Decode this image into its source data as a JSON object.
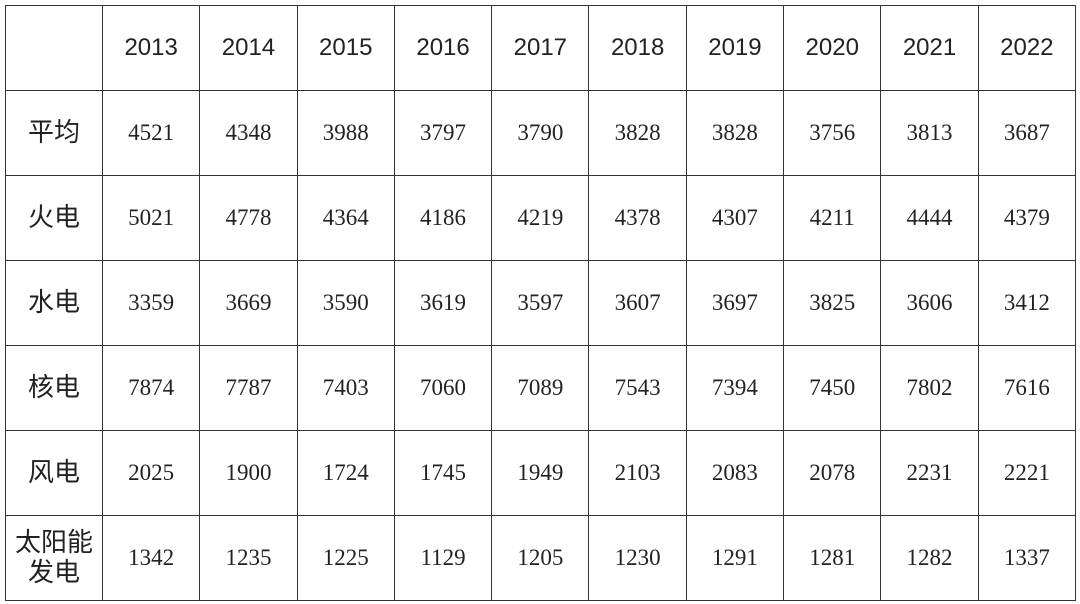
{
  "table": {
    "columns": [
      "2013",
      "2014",
      "2015",
      "2016",
      "2017",
      "2018",
      "2019",
      "2020",
      "2021",
      "2022"
    ],
    "rows": [
      {
        "label": "平均",
        "values": [
          4521,
          4348,
          3988,
          3797,
          3790,
          3828,
          3828,
          3756,
          3813,
          3687
        ]
      },
      {
        "label": "火电",
        "values": [
          5021,
          4778,
          4364,
          4186,
          4219,
          4378,
          4307,
          4211,
          4444,
          4379
        ]
      },
      {
        "label": "水电",
        "values": [
          3359,
          3669,
          3590,
          3619,
          3597,
          3607,
          3697,
          3825,
          3606,
          3412
        ]
      },
      {
        "label": "核电",
        "values": [
          7874,
          7787,
          7403,
          7060,
          7089,
          7543,
          7394,
          7450,
          7802,
          7616
        ]
      },
      {
        "label": "风电",
        "values": [
          2025,
          1900,
          1724,
          1745,
          1949,
          2103,
          2083,
          2078,
          2231,
          2221
        ]
      },
      {
        "label": "太阳能发电",
        "values": [
          1342,
          1235,
          1225,
          1129,
          1205,
          1230,
          1291,
          1281,
          1282,
          1337
        ]
      }
    ]
  }
}
